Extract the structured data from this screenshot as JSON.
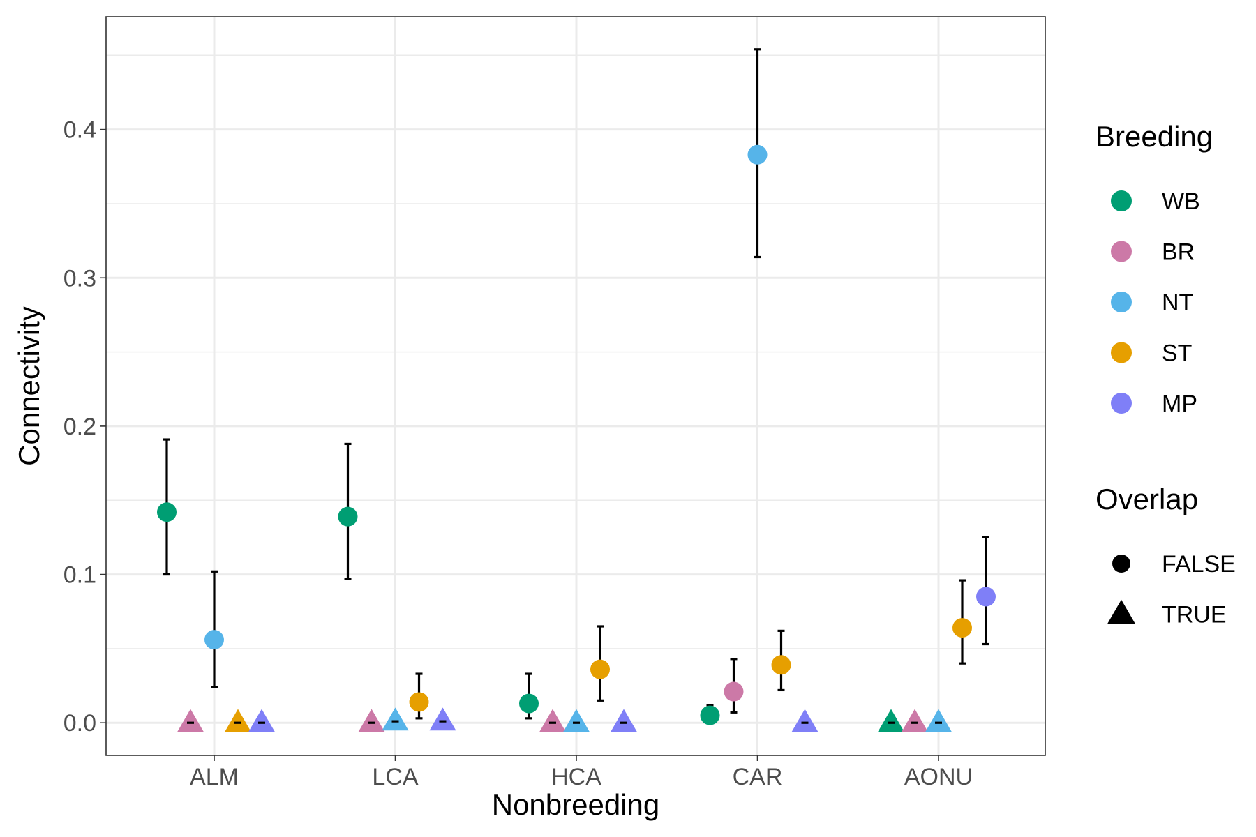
{
  "chart_data": {
    "type": "scatter",
    "title": "",
    "xlabel": "Nonbreeding",
    "ylabel": "Connectivity",
    "categories": [
      "ALM",
      "LCA",
      "HCA",
      "CAR",
      "AONU"
    ],
    "ylim": [
      -0.022,
      0.476
    ],
    "yticks": [
      0.0,
      0.1,
      0.2,
      0.3,
      0.4
    ],
    "ytick_labels": [
      "0.0",
      "0.1",
      "0.2",
      "0.3",
      "0.4"
    ],
    "grid": true,
    "legend_position": "right",
    "breeding_order": [
      "WB",
      "BR",
      "NT",
      "ST",
      "MP"
    ],
    "series": [
      {
        "name": "WB",
        "color": "#009E73",
        "points": [
          {
            "x": "ALM",
            "y": 0.142,
            "lo": 0.1,
            "hi": 0.191,
            "overlap": false
          },
          {
            "x": "LCA",
            "y": 0.139,
            "lo": 0.097,
            "hi": 0.188,
            "overlap": false
          },
          {
            "x": "HCA",
            "y": 0.013,
            "lo": 0.003,
            "hi": 0.033,
            "overlap": false
          },
          {
            "x": "CAR",
            "y": 0.005,
            "lo": 0.001,
            "hi": 0.012,
            "overlap": false
          },
          {
            "x": "AONU",
            "y": 0.0,
            "lo": 0.0,
            "hi": 0.0,
            "overlap": true
          }
        ]
      },
      {
        "name": "BR",
        "color": "#CC79A7",
        "points": [
          {
            "x": "ALM",
            "y": 0.0,
            "lo": 0.0,
            "hi": 0.0,
            "overlap": true
          },
          {
            "x": "LCA",
            "y": 0.0,
            "lo": 0.0,
            "hi": 0.0,
            "overlap": true
          },
          {
            "x": "HCA",
            "y": 0.0,
            "lo": 0.0,
            "hi": 0.0,
            "overlap": true
          },
          {
            "x": "CAR",
            "y": 0.021,
            "lo": 0.007,
            "hi": 0.043,
            "overlap": false
          },
          {
            "x": "AONU",
            "y": 0.0,
            "lo": 0.0,
            "hi": 0.0,
            "overlap": true
          }
        ]
      },
      {
        "name": "NT",
        "color": "#56B4E9",
        "points": [
          {
            "x": "ALM",
            "y": 0.056,
            "lo": 0.024,
            "hi": 0.102,
            "overlap": false
          },
          {
            "x": "LCA",
            "y": 0.001,
            "lo": 0.0,
            "hi": 0.003,
            "overlap": true
          },
          {
            "x": "HCA",
            "y": 0.0,
            "lo": 0.0,
            "hi": 0.0,
            "overlap": true
          },
          {
            "x": "CAR",
            "y": 0.383,
            "lo": 0.314,
            "hi": 0.454,
            "overlap": false
          },
          {
            "x": "AONU",
            "y": 0.0,
            "lo": 0.0,
            "hi": 0.0,
            "overlap": true
          }
        ]
      },
      {
        "name": "ST",
        "color": "#E69F00",
        "points": [
          {
            "x": "ALM",
            "y": 0.0,
            "lo": 0.0,
            "hi": 0.0,
            "overlap": true
          },
          {
            "x": "LCA",
            "y": 0.014,
            "lo": 0.003,
            "hi": 0.033,
            "overlap": false
          },
          {
            "x": "HCA",
            "y": 0.036,
            "lo": 0.015,
            "hi": 0.065,
            "overlap": false
          },
          {
            "x": "CAR",
            "y": 0.039,
            "lo": 0.022,
            "hi": 0.062,
            "overlap": false
          },
          {
            "x": "AONU",
            "y": 0.064,
            "lo": 0.04,
            "hi": 0.096,
            "overlap": false
          }
        ]
      },
      {
        "name": "MP",
        "color": "#7F7FF7",
        "points": [
          {
            "x": "ALM",
            "y": 0.0,
            "lo": 0.0,
            "hi": 0.0,
            "overlap": true
          },
          {
            "x": "LCA",
            "y": 0.001,
            "lo": 0.0,
            "hi": 0.003,
            "overlap": true
          },
          {
            "x": "HCA",
            "y": 0.0,
            "lo": 0.0,
            "hi": 0.0,
            "overlap": true
          },
          {
            "x": "CAR",
            "y": 0.0,
            "lo": 0.0,
            "hi": 0.0,
            "overlap": true
          },
          {
            "x": "AONU",
            "y": 0.085,
            "lo": 0.053,
            "hi": 0.125,
            "overlap": false
          }
        ]
      }
    ],
    "legends": [
      {
        "title": "Breeding",
        "items": [
          {
            "label": "WB",
            "color": "#009E73",
            "shape": "circle"
          },
          {
            "label": "BR",
            "color": "#CC79A7",
            "shape": "circle"
          },
          {
            "label": "NT",
            "color": "#56B4E9",
            "shape": "circle"
          },
          {
            "label": "ST",
            "color": "#E69F00",
            "shape": "circle"
          },
          {
            "label": "MP",
            "color": "#7F7FF7",
            "shape": "circle"
          }
        ]
      },
      {
        "title": "Overlap",
        "items": [
          {
            "label": "FALSE",
            "color": "#000000",
            "shape": "circle"
          },
          {
            "label": "TRUE",
            "color": "#000000",
            "shape": "triangle"
          }
        ]
      }
    ]
  }
}
